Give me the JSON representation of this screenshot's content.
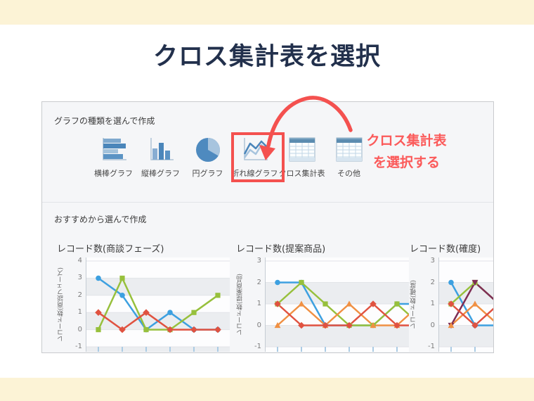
{
  "page": {
    "title": "クロス集計表を選択"
  },
  "panel": {
    "section1_label": "グラフの種類を選んで作成",
    "section2_label": "おすすめから選んで作成",
    "chart_types": [
      {
        "label": "横棒グラフ",
        "icon": "horizontal-bar-chart-icon"
      },
      {
        "label": "縦棒グラフ",
        "icon": "vertical-bar-chart-icon"
      },
      {
        "label": "円グラフ",
        "icon": "pie-chart-icon"
      },
      {
        "label": "折れ線グラフ",
        "icon": "line-chart-icon"
      },
      {
        "label": "クロス集計表",
        "icon": "cross-tab-table-icon",
        "highlighted": true
      },
      {
        "label": "その他",
        "icon": "table-icon"
      }
    ]
  },
  "annotation": {
    "line1": "クロス集計表",
    "line2": "を選択する"
  },
  "colors": {
    "accent": "#f4514f",
    "annotation_text": "#fb5a5a",
    "title": "#22304c",
    "band": "#fcf3d6",
    "panel_bg": "#f5f6f8",
    "series_blue": "#3da0e0",
    "series_green": "#97c03c",
    "series_red": "#e05240",
    "series_orange": "#f09043",
    "series_purple": "#7e2d54"
  },
  "chart_data": [
    {
      "type": "line",
      "title": "レコード数(商談フェーズ)",
      "ylabel": "レコード数(商談フェーズ)",
      "xlabel": "",
      "ylim": [
        -1,
        4
      ],
      "yticks": [
        4,
        3,
        2,
        1,
        0,
        -1
      ],
      "grid": "striped-bands",
      "legend": "none",
      "series": [
        {
          "name": "series-blue",
          "color": "#3da0e0",
          "marker": "circle",
          "values": [
            3,
            2,
            0,
            1,
            0,
            0
          ]
        },
        {
          "name": "series-green",
          "color": "#97c03c",
          "marker": "square",
          "values": [
            0,
            3,
            0,
            0,
            1,
            2
          ]
        },
        {
          "name": "series-red",
          "color": "#e05240",
          "marker": "diamond",
          "values": [
            1,
            0,
            1,
            0,
            0,
            0
          ]
        }
      ]
    },
    {
      "type": "line",
      "title": "レコード数(提案商品)",
      "ylabel": "レコード数(提案商品)",
      "xlabel": "",
      "ylim": [
        -1,
        3
      ],
      "yticks": [
        3,
        2,
        1,
        0,
        -1
      ],
      "grid": "striped-bands",
      "legend": "none",
      "series": [
        {
          "name": "series-blue",
          "color": "#3da0e0",
          "marker": "circle",
          "values": [
            2,
            2,
            0,
            0,
            0,
            1,
            1
          ]
        },
        {
          "name": "series-green",
          "color": "#97c03c",
          "marker": "square",
          "values": [
            1,
            2,
            1,
            0,
            0,
            1,
            0
          ]
        },
        {
          "name": "series-orange",
          "color": "#f09043",
          "marker": "triangle-up",
          "values": [
            0,
            1,
            0,
            1,
            0,
            0,
            1
          ]
        },
        {
          "name": "series-red",
          "color": "#e05240",
          "marker": "diamond",
          "values": [
            1,
            0,
            0,
            0,
            1,
            0,
            0
          ]
        }
      ]
    },
    {
      "type": "line",
      "title": "レコード数(確度)",
      "ylabel": "レコード数(確度)",
      "xlabel": "",
      "ylim": [
        -1,
        3
      ],
      "yticks": [
        3,
        2,
        1,
        0,
        -1
      ],
      "grid": "striped-bands",
      "legend": "none",
      "series": [
        {
          "name": "series-blue",
          "color": "#3da0e0",
          "marker": "circle",
          "values": [
            2,
            0,
            0
          ]
        },
        {
          "name": "series-green",
          "color": "#97c03c",
          "marker": "square",
          "values": [
            1,
            2,
            1
          ]
        },
        {
          "name": "series-purple",
          "color": "#7e2d54",
          "marker": "triangle-down",
          "values": [
            0,
            2,
            1
          ]
        },
        {
          "name": "series-orange",
          "color": "#f09043",
          "marker": "triangle-up",
          "values": [
            0,
            1,
            0
          ]
        },
        {
          "name": "series-red",
          "color": "#e05240",
          "marker": "diamond",
          "values": [
            1,
            0,
            1
          ]
        }
      ]
    }
  ]
}
